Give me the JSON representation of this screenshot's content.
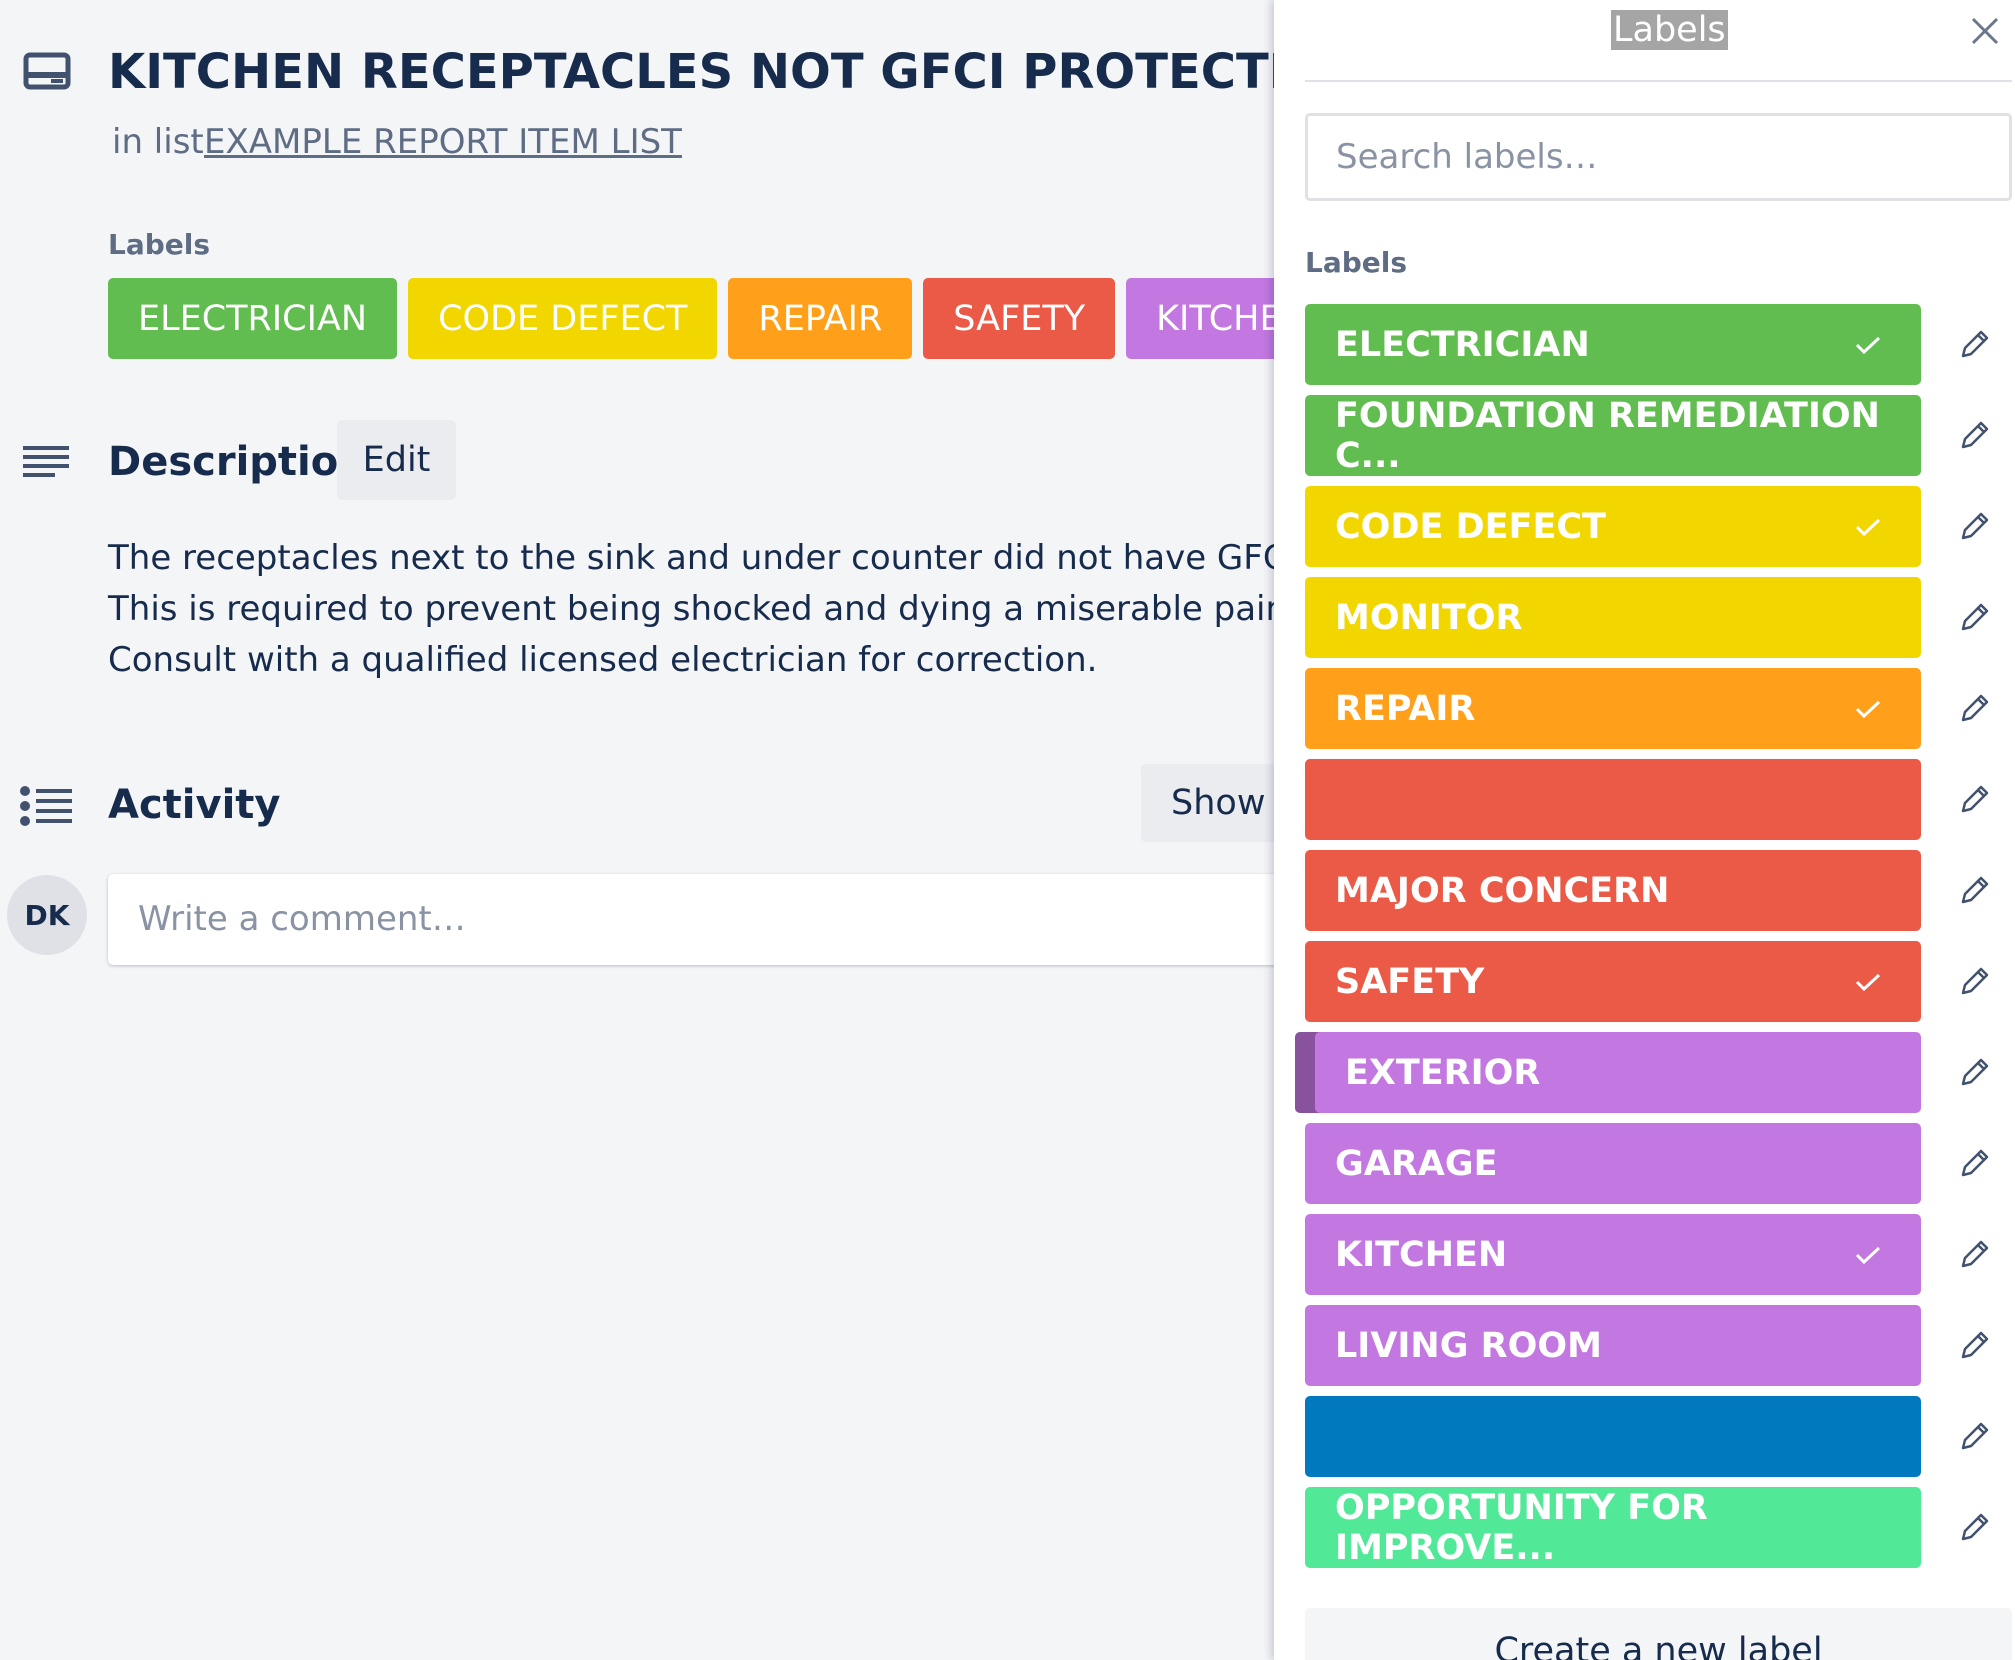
{
  "card": {
    "title": "KITCHEN RECEPTACLES NOT GFCI PROTECTED",
    "list_prefix": "in list",
    "list_name": "EXAMPLE REPORT ITEM LIST",
    "labels_heading": "Labels",
    "labels": [
      {
        "name": "ELECTRICIAN",
        "color": "#61bd4f"
      },
      {
        "name": "CODE DEFECT",
        "color": "#f2d600"
      },
      {
        "name": "REPAIR",
        "color": "#ff9f1a"
      },
      {
        "name": "SAFETY",
        "color": "#eb5a46"
      },
      {
        "name": "KITCHEN",
        "color": "#c377e0"
      }
    ],
    "description": {
      "heading": "Description",
      "edit": "Edit",
      "lines": [
        "The receptacles next to the sink and under counter did not have GFCI prote",
        "This is required to prevent being shocked and dying a miserable painful de",
        "Consult with a qualified licensed electrician for correction."
      ]
    },
    "activity": {
      "heading": "Activity",
      "show_button": "Show d",
      "avatar": "DK",
      "comment_placeholder": "Write a comment…"
    }
  },
  "popup": {
    "title": "Labels",
    "search_placeholder": "Search labels…",
    "section_heading": "Labels",
    "labels": [
      {
        "name": "ELECTRICIAN",
        "color": "#61bd4f",
        "checked": true
      },
      {
        "name": "FOUNDATION REMEDIATION C...",
        "color": "#61bd4f",
        "checked": false
      },
      {
        "name": "CODE DEFECT",
        "color": "#f2d600",
        "checked": true
      },
      {
        "name": "MONITOR",
        "color": "#f2d600",
        "checked": false
      },
      {
        "name": "REPAIR",
        "color": "#ff9f1a",
        "checked": true
      },
      {
        "name": null,
        "color": "#eb5a46",
        "checked": false
      },
      {
        "name": "MAJOR CONCERN",
        "color": "#eb5a46",
        "checked": false
      },
      {
        "name": "SAFETY",
        "color": "#eb5a46",
        "checked": true
      },
      {
        "name": "EXTERIOR",
        "color": "#c377e0",
        "checked": false,
        "hovered": true
      },
      {
        "name": "GARAGE",
        "color": "#c377e0",
        "checked": false
      },
      {
        "name": "KITCHEN",
        "color": "#c377e0",
        "checked": true
      },
      {
        "name": "LIVING ROOM",
        "color": "#c377e0",
        "checked": false
      },
      {
        "name": null,
        "color": "#0079bf",
        "checked": false
      },
      {
        "name": "OPPORTUNITY FOR IMPROVE...",
        "color": "#51e898",
        "checked": false
      }
    ],
    "create_button": "Create a new label"
  }
}
